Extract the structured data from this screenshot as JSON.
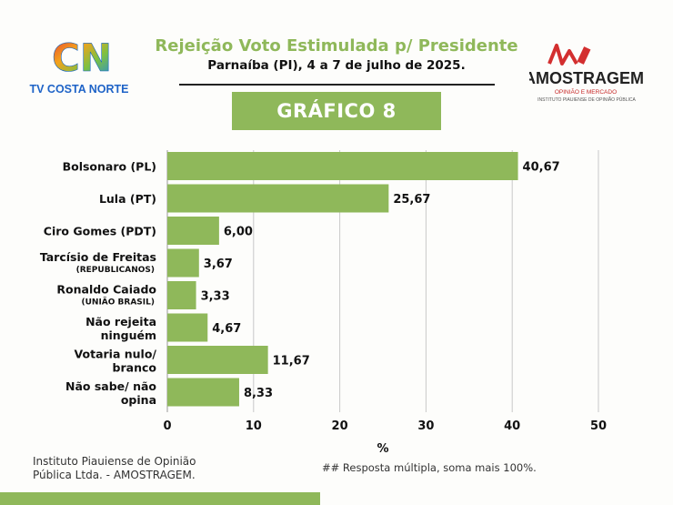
{
  "header": {
    "title": "Rejeição Voto Estimulada p/ Presidente",
    "subtitle": "Parnaíba (PI), 4 a 7 de julho de 2025.",
    "badge": "GRÁFICO 8"
  },
  "logos": {
    "left_name": "TV COSTA NORTE",
    "left_monogram": "CN",
    "right_name": "AMOSTRAGEM",
    "right_tagline": "OPINIÃO E MERCADO",
    "right_institute": "INSTITUTO PIAUIENSE DE OPINIÃO PÚBLICA"
  },
  "footer": {
    "source_line1": "Instituto Piauiense de Opinião",
    "source_line2": "Pública Ltda. - AMOSTRAGEM.",
    "note": "## Resposta múltipla, soma mais 100%."
  },
  "colors": {
    "accent": "#8fb85a",
    "bar": "#8fb85a",
    "grid": "#c8c8c8",
    "text": "#111111"
  },
  "chart_data": {
    "type": "bar",
    "orientation": "horizontal",
    "categories": [
      {
        "lines": [
          "Bolsonaro (PL)"
        ],
        "sub": ""
      },
      {
        "lines": [
          "Lula (PT)"
        ],
        "sub": ""
      },
      {
        "lines": [
          "Ciro Gomes (PDT)"
        ],
        "sub": ""
      },
      {
        "lines": [
          "Tarcísio de Freitas"
        ],
        "sub": "(REPUBLICANOS)"
      },
      {
        "lines": [
          "Ronaldo Caiado"
        ],
        "sub": "(UNIÃO BRASIL)"
      },
      {
        "lines": [
          "Não rejeita",
          "ninguém"
        ],
        "sub": ""
      },
      {
        "lines": [
          "Votaria nulo/",
          "branco"
        ],
        "sub": ""
      },
      {
        "lines": [
          "Não sabe/ não",
          "opina"
        ],
        "sub": ""
      }
    ],
    "values": [
      40.67,
      25.67,
      6.0,
      3.67,
      3.33,
      4.67,
      11.67,
      8.33
    ],
    "value_labels": [
      "40,67",
      "25,67",
      "6,00",
      "3,67",
      "3,33",
      "4,67",
      "11,67",
      "8,33"
    ],
    "xlim": [
      0,
      50
    ],
    "xticks": [
      0,
      10,
      20,
      30,
      40,
      50
    ],
    "xlabel": "%",
    "grid": "vertical"
  }
}
